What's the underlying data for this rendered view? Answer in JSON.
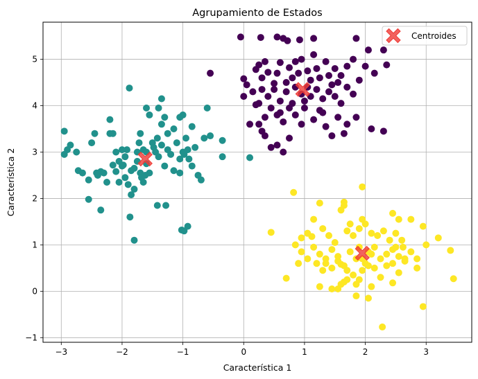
{
  "chart_data": {
    "type": "scatter",
    "title": "Agrupamiento de Estados",
    "xlabel": "Característica 1",
    "ylabel": "Característica 2",
    "xlim": [
      -3.3,
      3.75
    ],
    "ylim": [
      -1.1,
      5.8
    ],
    "xticks": [
      -3,
      -2,
      -1,
      0,
      1,
      2,
      3
    ],
    "yticks": [
      -1,
      0,
      1,
      2,
      3,
      4,
      5
    ],
    "grid": true,
    "legend": {
      "placement": "top-right",
      "entries": [
        "Centroides"
      ]
    },
    "series": [
      {
        "color": "#440154",
        "points": [
          [
            -0.05,
            5.48
          ],
          [
            0.28,
            5.47
          ],
          [
            0.55,
            5.48
          ],
          [
            0.65,
            5.45
          ],
          [
            0.72,
            5.4
          ],
          [
            0.92,
            5.42
          ],
          [
            1.15,
            5.45
          ],
          [
            1.85,
            5.45
          ],
          [
            2.05,
            5.2
          ],
          [
            2.3,
            5.2
          ],
          [
            -0.55,
            4.7
          ],
          [
            0.0,
            4.58
          ],
          [
            0.05,
            4.45
          ],
          [
            0.2,
            4.78
          ],
          [
            0.25,
            4.88
          ],
          [
            0.3,
            4.6
          ],
          [
            0.35,
            4.95
          ],
          [
            0.4,
            4.72
          ],
          [
            0.5,
            4.48
          ],
          [
            0.55,
            4.7
          ],
          [
            0.6,
            4.93
          ],
          [
            0.7,
            4.5
          ],
          [
            0.75,
            4.82
          ],
          [
            0.8,
            4.6
          ],
          [
            0.85,
            4.95
          ],
          [
            0.9,
            4.7
          ],
          [
            0.95,
            5.0
          ],
          [
            1.05,
            4.75
          ],
          [
            1.1,
            4.55
          ],
          [
            1.15,
            5.1
          ],
          [
            1.2,
            4.8
          ],
          [
            1.25,
            4.6
          ],
          [
            1.35,
            4.95
          ],
          [
            1.4,
            4.65
          ],
          [
            1.5,
            4.8
          ],
          [
            1.55,
            4.5
          ],
          [
            1.6,
            4.65
          ],
          [
            1.7,
            4.85
          ],
          [
            1.8,
            5.0
          ],
          [
            1.9,
            4.55
          ],
          [
            2.0,
            4.85
          ],
          [
            2.15,
            4.7
          ],
          [
            2.35,
            4.88
          ],
          [
            0.0,
            4.2
          ],
          [
            0.15,
            4.3
          ],
          [
            0.25,
            4.05
          ],
          [
            0.3,
            4.35
          ],
          [
            0.4,
            4.2
          ],
          [
            0.5,
            4.35
          ],
          [
            0.6,
            4.1
          ],
          [
            0.7,
            4.3
          ],
          [
            0.8,
            4.05
          ],
          [
            0.85,
            4.4
          ],
          [
            0.95,
            4.25
          ],
          [
            1.0,
            4.1
          ],
          [
            1.05,
            4.4
          ],
          [
            1.1,
            4.2
          ],
          [
            1.2,
            4.35
          ],
          [
            1.3,
            4.15
          ],
          [
            1.4,
            4.3
          ],
          [
            1.5,
            4.2
          ],
          [
            1.6,
            4.05
          ],
          [
            1.7,
            4.4
          ],
          [
            1.8,
            4.25
          ],
          [
            1.45,
            4.45
          ],
          [
            0.2,
            4.02
          ],
          [
            0.1,
            3.6
          ],
          [
            0.35,
            3.75
          ],
          [
            0.45,
            3.95
          ],
          [
            0.55,
            3.8
          ],
          [
            0.65,
            3.65
          ],
          [
            0.75,
            3.95
          ],
          [
            0.85,
            3.8
          ],
          [
            1.0,
            3.95
          ],
          [
            1.15,
            3.7
          ],
          [
            1.25,
            3.9
          ],
          [
            1.35,
            3.55
          ],
          [
            1.45,
            3.35
          ],
          [
            1.55,
            3.75
          ],
          [
            1.65,
            3.4
          ],
          [
            1.7,
            3.6
          ],
          [
            1.3,
            3.85
          ],
          [
            0.3,
            3.45
          ],
          [
            0.35,
            3.35
          ],
          [
            0.45,
            3.1
          ],
          [
            0.55,
            3.15
          ],
          [
            0.65,
            3.0
          ],
          [
            0.75,
            3.3
          ],
          [
            0.95,
            3.6
          ],
          [
            2.1,
            3.5
          ],
          [
            2.3,
            3.45
          ],
          [
            0.6,
            3.85
          ],
          [
            0.25,
            3.6
          ],
          [
            1.85,
            3.75
          ]
        ]
      },
      {
        "color": "#21918c",
        "points": [
          [
            -2.95,
            3.45
          ],
          [
            -2.9,
            3.05
          ],
          [
            -2.85,
            3.15
          ],
          [
            -2.95,
            2.95
          ],
          [
            -2.75,
            3.0
          ],
          [
            -2.72,
            2.6
          ],
          [
            -2.65,
            2.55
          ],
          [
            -2.55,
            2.4
          ],
          [
            -2.5,
            3.2
          ],
          [
            -2.45,
            3.4
          ],
          [
            -2.4,
            2.5
          ],
          [
            -2.35,
            2.58
          ],
          [
            -2.3,
            2.55
          ],
          [
            -2.25,
            2.35
          ],
          [
            -2.2,
            3.7
          ],
          [
            -2.15,
            3.4
          ],
          [
            -2.1,
            3.0
          ],
          [
            -2.05,
            2.8
          ],
          [
            -2.0,
            2.7
          ],
          [
            -1.95,
            2.45
          ],
          [
            -1.92,
            3.05
          ],
          [
            -1.85,
            2.6
          ],
          [
            -1.8,
            2.65
          ],
          [
            -1.75,
            2.8
          ],
          [
            -1.7,
            2.55
          ],
          [
            -1.65,
            3.05
          ],
          [
            -1.6,
            2.75
          ],
          [
            -1.55,
            2.55
          ],
          [
            -1.5,
            3.2
          ],
          [
            -1.45,
            3.0
          ],
          [
            -1.4,
            2.9
          ],
          [
            -1.35,
            3.15
          ],
          [
            -1.3,
            2.7
          ],
          [
            -1.25,
            3.05
          ],
          [
            -1.2,
            2.95
          ],
          [
            -1.15,
            3.5
          ],
          [
            -1.1,
            3.2
          ],
          [
            -1.05,
            2.85
          ],
          [
            -1.0,
            3.0
          ],
          [
            -0.95,
            3.3
          ],
          [
            -0.9,
            2.85
          ],
          [
            -0.85,
            2.7
          ],
          [
            -0.8,
            3.1
          ],
          [
            -0.75,
            2.5
          ],
          [
            -0.7,
            2.4
          ],
          [
            -0.65,
            3.3
          ],
          [
            -0.6,
            3.95
          ],
          [
            -0.55,
            3.35
          ],
          [
            -0.35,
            2.9
          ],
          [
            -0.35,
            3.25
          ],
          [
            0.1,
            2.88
          ],
          [
            -1.88,
            4.38
          ],
          [
            -1.6,
            3.95
          ],
          [
            -1.4,
            3.95
          ],
          [
            -1.35,
            4.15
          ],
          [
            -1.3,
            3.75
          ],
          [
            -1.05,
            3.75
          ],
          [
            -1.0,
            3.8
          ],
          [
            -1.72,
            3.2
          ],
          [
            -1.68,
            2.45
          ],
          [
            -1.8,
            2.2
          ],
          [
            -1.9,
            2.3
          ],
          [
            -1.85,
            2.08
          ],
          [
            -1.87,
            1.6
          ],
          [
            -1.8,
            1.1
          ],
          [
            -1.65,
            2.35
          ],
          [
            -1.62,
            2.5
          ],
          [
            -1.42,
            1.85
          ],
          [
            -1.28,
            1.85
          ],
          [
            -1.02,
            1.32
          ],
          [
            -0.98,
            1.3
          ],
          [
            -0.92,
            1.4
          ],
          [
            -2.55,
            1.98
          ],
          [
            -2.35,
            1.75
          ],
          [
            -2.15,
            2.72
          ],
          [
            -2.1,
            2.58
          ],
          [
            -2.05,
            2.35
          ],
          [
            -1.95,
            2.9
          ],
          [
            -1.7,
            3.4
          ],
          [
            -1.55,
            3.8
          ],
          [
            -1.35,
            3.6
          ],
          [
            -1.25,
            3.4
          ],
          [
            -1.15,
            2.6
          ],
          [
            -1.05,
            2.55
          ],
          [
            -0.98,
            2.95
          ],
          [
            -0.92,
            3.05
          ],
          [
            -0.85,
            3.55
          ],
          [
            -1.48,
            3.1
          ],
          [
            -1.42,
            3.3
          ],
          [
            -2.2,
            3.4
          ],
          [
            -2.42,
            2.55
          ],
          [
            -2.0,
            3.05
          ],
          [
            -1.98,
            2.72
          ],
          [
            -1.75,
            3.0
          ],
          [
            -1.6,
            3.0
          ]
        ]
      },
      {
        "color": "#fde725",
        "points": [
          [
            0.82,
            2.13
          ],
          [
            1.95,
            2.25
          ],
          [
            1.25,
            1.9
          ],
          [
            1.65,
            1.92
          ],
          [
            1.65,
            1.85
          ],
          [
            1.75,
            1.45
          ],
          [
            2.45,
            1.68
          ],
          [
            2.55,
            1.55
          ],
          [
            2.75,
            1.55
          ],
          [
            2.95,
            1.4
          ],
          [
            0.45,
            1.27
          ],
          [
            0.95,
            1.15
          ],
          [
            1.05,
            1.25
          ],
          [
            1.15,
            1.55
          ],
          [
            1.3,
            1.35
          ],
          [
            1.4,
            1.2
          ],
          [
            1.5,
            1.05
          ],
          [
            1.6,
            1.75
          ],
          [
            1.7,
            1.3
          ],
          [
            1.8,
            1.2
          ],
          [
            1.9,
            1.35
          ],
          [
            1.95,
            1.55
          ],
          [
            2.0,
            1.45
          ],
          [
            2.1,
            1.25
          ],
          [
            2.2,
            1.2
          ],
          [
            2.3,
            1.3
          ],
          [
            2.4,
            1.1
          ],
          [
            2.5,
            1.25
          ],
          [
            2.6,
            1.1
          ],
          [
            3.2,
            1.15
          ],
          [
            0.85,
            1.0
          ],
          [
            0.95,
            0.85
          ],
          [
            1.05,
            0.7
          ],
          [
            1.15,
            0.95
          ],
          [
            1.25,
            0.8
          ],
          [
            1.35,
            0.6
          ],
          [
            1.45,
            0.9
          ],
          [
            1.55,
            0.75
          ],
          [
            1.65,
            0.55
          ],
          [
            1.75,
            0.85
          ],
          [
            1.85,
            0.7
          ],
          [
            1.9,
            0.95
          ],
          [
            2.0,
            0.6
          ],
          [
            2.1,
            0.8
          ],
          [
            2.15,
            0.95
          ],
          [
            2.25,
            0.7
          ],
          [
            2.35,
            0.8
          ],
          [
            2.45,
            0.9
          ],
          [
            2.55,
            0.75
          ],
          [
            2.65,
            0.65
          ],
          [
            2.75,
            0.85
          ],
          [
            2.85,
            0.7
          ],
          [
            3.0,
            1.0
          ],
          [
            3.4,
            0.88
          ],
          [
            0.9,
            0.6
          ],
          [
            1.2,
            0.6
          ],
          [
            1.3,
            0.45
          ],
          [
            1.45,
            0.5
          ],
          [
            1.55,
            0.65
          ],
          [
            1.7,
            0.45
          ],
          [
            1.8,
            0.35
          ],
          [
            1.95,
            0.45
          ],
          [
            2.05,
            0.55
          ],
          [
            2.25,
            0.3
          ],
          [
            2.35,
            0.55
          ],
          [
            2.45,
            0.6
          ],
          [
            2.55,
            0.4
          ],
          [
            2.65,
            0.7
          ],
          [
            2.85,
            0.5
          ],
          [
            1.25,
            0.1
          ],
          [
            1.45,
            0.05
          ],
          [
            1.55,
            0.05
          ],
          [
            1.65,
            0.2
          ],
          [
            1.85,
            0.15
          ],
          [
            1.9,
            0.25
          ],
          [
            2.1,
            0.1
          ],
          [
            2.45,
            0.18
          ],
          [
            2.95,
            -0.33
          ],
          [
            2.28,
            -0.77
          ],
          [
            1.85,
            -0.1
          ],
          [
            2.05,
            -0.15
          ],
          [
            0.7,
            0.28
          ],
          [
            3.45,
            0.27
          ],
          [
            1.6,
            0.15
          ],
          [
            1.7,
            0.25
          ],
          [
            2.15,
            0.5
          ],
          [
            1.35,
            0.7
          ],
          [
            2.5,
            0.95
          ],
          [
            1.12,
            1.18
          ],
          [
            2.62,
            0.95
          ],
          [
            1.95,
            0.7
          ],
          [
            2.05,
            0.85
          ],
          [
            1.6,
            0.58
          ]
        ]
      }
    ],
    "centroids": {
      "name": "Centroides",
      "color": "#ef3b36",
      "points": [
        [
          0.97,
          4.35
        ],
        [
          -1.62,
          2.85
        ],
        [
          1.95,
          0.82
        ]
      ]
    }
  }
}
